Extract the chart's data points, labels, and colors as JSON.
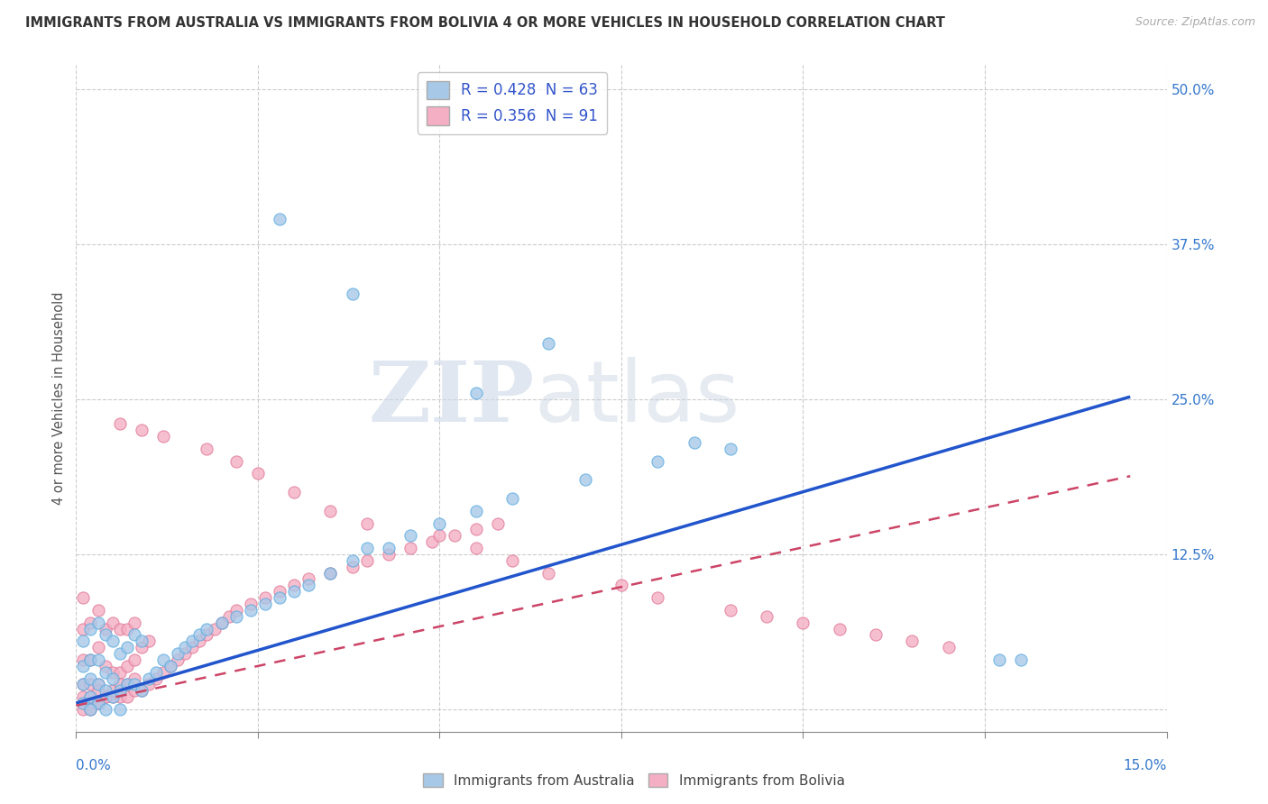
{
  "title": "IMMIGRANTS FROM AUSTRALIA VS IMMIGRANTS FROM BOLIVIA 4 OR MORE VEHICLES IN HOUSEHOLD CORRELATION CHART",
  "source": "Source: ZipAtlas.com",
  "ylabel": "4 or more Vehicles in Household",
  "xlim": [
    0.0,
    0.15
  ],
  "ylim": [
    -0.018,
    0.52
  ],
  "yticks": [
    0.0,
    0.125,
    0.25,
    0.375,
    0.5
  ],
  "xtick_positions": [
    0.0,
    0.025,
    0.05,
    0.075,
    0.1,
    0.125,
    0.15
  ],
  "australia_color": "#a8c8e8",
  "australia_edge": "#5aace0",
  "bolivia_color": "#f4afc4",
  "bolivia_edge": "#e07898",
  "trend_australia_color": "#2255cc",
  "trend_bolivia_color": "#cc4466",
  "R_australia": 0.428,
  "N_australia": 63,
  "R_bolivia": 0.356,
  "N_bolivia": 91,
  "legend_label_australia": "Immigrants from Australia",
  "legend_label_bolivia": "Immigrants from Bolivia",
  "watermark_zip": "ZIP",
  "watermark_atlas": "atlas",
  "aus_trend_x0": 0.0,
  "aus_trend_y0": 0.005,
  "aus_trend_x1": 0.145,
  "aus_trend_y1": 0.252,
  "bol_trend_x0": 0.0,
  "bol_trend_y0": 0.003,
  "bol_trend_x1": 0.145,
  "bol_trend_y1": 0.188,
  "scatter_aus_x": [
    0.001,
    0.001,
    0.001,
    0.001,
    0.002,
    0.002,
    0.002,
    0.002,
    0.003,
    0.003,
    0.003,
    0.003,
    0.004,
    0.004,
    0.004,
    0.005,
    0.005,
    0.005,
    0.006,
    0.006,
    0.007,
    0.007,
    0.008,
    0.008,
    0.009,
    0.009,
    0.01,
    0.011,
    0.012,
    0.013,
    0.014,
    0.015,
    0.016,
    0.017,
    0.018,
    0.02,
    0.022,
    0.024,
    0.026,
    0.028,
    0.03,
    0.032,
    0.035,
    0.038,
    0.04,
    0.043,
    0.046,
    0.05,
    0.055,
    0.06,
    0.07,
    0.08,
    0.09,
    0.028,
    0.038,
    0.055,
    0.065,
    0.085,
    0.127,
    0.13,
    0.002,
    0.004,
    0.006
  ],
  "scatter_aus_y": [
    0.005,
    0.02,
    0.035,
    0.055,
    0.01,
    0.025,
    0.04,
    0.065,
    0.005,
    0.02,
    0.04,
    0.07,
    0.015,
    0.03,
    0.06,
    0.01,
    0.025,
    0.055,
    0.015,
    0.045,
    0.02,
    0.05,
    0.02,
    0.06,
    0.015,
    0.055,
    0.025,
    0.03,
    0.04,
    0.035,
    0.045,
    0.05,
    0.055,
    0.06,
    0.065,
    0.07,
    0.075,
    0.08,
    0.085,
    0.09,
    0.095,
    0.1,
    0.11,
    0.12,
    0.13,
    0.13,
    0.14,
    0.15,
    0.16,
    0.17,
    0.185,
    0.2,
    0.21,
    0.395,
    0.335,
    0.255,
    0.295,
    0.215,
    0.04,
    0.04,
    0.0,
    0.0,
    0.0
  ],
  "scatter_bol_x": [
    0.001,
    0.001,
    0.001,
    0.001,
    0.001,
    0.002,
    0.002,
    0.002,
    0.002,
    0.003,
    0.003,
    0.003,
    0.003,
    0.004,
    0.004,
    0.004,
    0.005,
    0.005,
    0.005,
    0.006,
    0.006,
    0.006,
    0.007,
    0.007,
    0.007,
    0.008,
    0.008,
    0.008,
    0.009,
    0.009,
    0.01,
    0.01,
    0.011,
    0.012,
    0.013,
    0.014,
    0.015,
    0.016,
    0.017,
    0.018,
    0.019,
    0.02,
    0.021,
    0.022,
    0.024,
    0.026,
    0.028,
    0.03,
    0.032,
    0.035,
    0.038,
    0.04,
    0.043,
    0.046,
    0.049,
    0.052,
    0.055,
    0.058,
    0.006,
    0.009,
    0.012,
    0.018,
    0.022,
    0.025,
    0.03,
    0.035,
    0.04,
    0.05,
    0.055,
    0.06,
    0.065,
    0.075,
    0.08,
    0.09,
    0.095,
    0.1,
    0.105,
    0.11,
    0.115,
    0.12,
    0.001,
    0.001,
    0.002,
    0.002,
    0.003,
    0.003,
    0.004,
    0.005,
    0.006,
    0.007,
    0.008
  ],
  "scatter_bol_y": [
    0.005,
    0.02,
    0.04,
    0.065,
    0.09,
    0.005,
    0.02,
    0.04,
    0.07,
    0.005,
    0.02,
    0.05,
    0.08,
    0.01,
    0.035,
    0.065,
    0.01,
    0.03,
    0.07,
    0.01,
    0.03,
    0.065,
    0.01,
    0.035,
    0.065,
    0.015,
    0.04,
    0.07,
    0.015,
    0.05,
    0.02,
    0.055,
    0.025,
    0.03,
    0.035,
    0.04,
    0.045,
    0.05,
    0.055,
    0.06,
    0.065,
    0.07,
    0.075,
    0.08,
    0.085,
    0.09,
    0.095,
    0.1,
    0.105,
    0.11,
    0.115,
    0.12,
    0.125,
    0.13,
    0.135,
    0.14,
    0.145,
    0.15,
    0.23,
    0.225,
    0.22,
    0.21,
    0.2,
    0.19,
    0.175,
    0.16,
    0.15,
    0.14,
    0.13,
    0.12,
    0.11,
    0.1,
    0.09,
    0.08,
    0.075,
    0.07,
    0.065,
    0.06,
    0.055,
    0.05,
    0.0,
    0.01,
    0.0,
    0.01,
    0.005,
    0.015,
    0.01,
    0.015,
    0.02,
    0.02,
    0.025
  ]
}
